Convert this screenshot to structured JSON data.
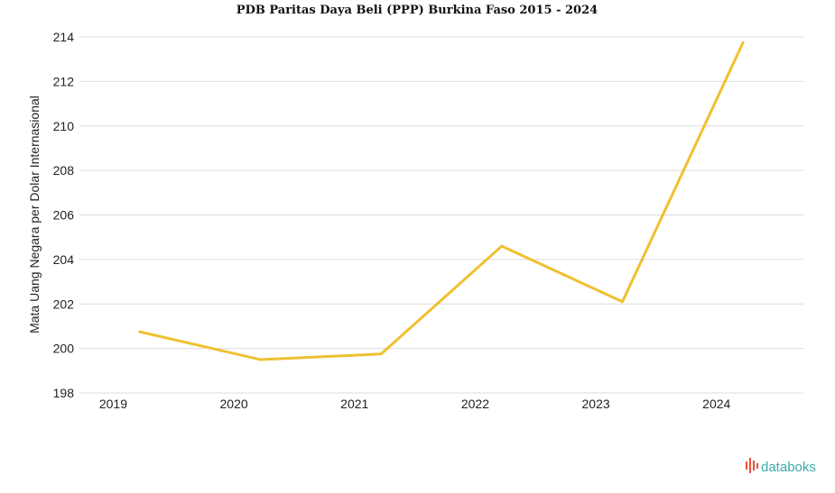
{
  "chart_data": {
    "type": "line",
    "title": "PDB Paritas Daya Beli (PPP) Burkina Faso 2015 - 2024",
    "xlabel": "",
    "ylabel": "Mata Uang Negara per Dolar Internasional",
    "categories": [
      "2019",
      "2020",
      "2021",
      "2022",
      "2023",
      "2024"
    ],
    "series": [
      {
        "values": [
          200.75,
          199.5,
          199.75,
          204.6,
          202.1,
          213.75
        ],
        "color": "#f0c030"
      }
    ],
    "ylim": [
      198,
      214
    ],
    "yticks": [
      198,
      200,
      202,
      204,
      206,
      208,
      210,
      212,
      214
    ],
    "grid": true,
    "legend": "none"
  },
  "watermark": {
    "text": "databoks",
    "icon": "databoks-logo-icon",
    "color": "#3aa9a9"
  }
}
